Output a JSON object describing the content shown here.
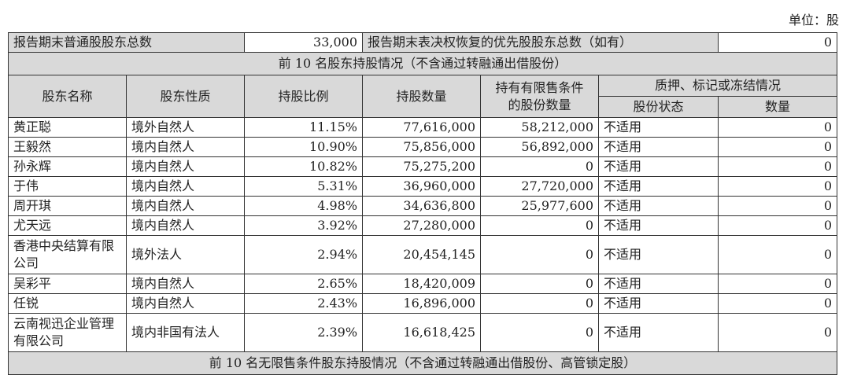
{
  "unit_label": "单位：股",
  "summary": {
    "common_label": "报告期末普通股股东总数",
    "common_value": "33,000",
    "preferred_label": "报告期末表决权恢复的优先股股东总数（如有）",
    "preferred_value": "0"
  },
  "section_title": "前 10 名股东持股情况（不含通过转融通出借股份）",
  "headers": {
    "name": "股东名称",
    "nature": "股东性质",
    "ratio": "持股比例",
    "quantity": "持股数量",
    "restricted": "持有有限售条件的股份数量",
    "pledge_group": "质押、标记或冻结情况",
    "pledge_status": "股份状态",
    "pledge_quantity": "数量"
  },
  "rows": [
    [
      "黄正聪",
      "境外自然人",
      "11.15%",
      "77,616,000",
      "58,212,000",
      "不适用",
      "0"
    ],
    [
      "王毅然",
      "境内自然人",
      "10.90%",
      "75,856,000",
      "56,892,000",
      "不适用",
      "0"
    ],
    [
      "孙永辉",
      "境内自然人",
      "10.82%",
      "75,275,200",
      "0",
      "不适用",
      "0"
    ],
    [
      "于伟",
      "境内自然人",
      "5.31%",
      "36,960,000",
      "27,720,000",
      "不适用",
      "0"
    ],
    [
      "周开琪",
      "境内自然人",
      "4.98%",
      "34,636,800",
      "25,977,600",
      "不适用",
      "0"
    ],
    [
      "尤天远",
      "境内自然人",
      "3.92%",
      "27,280,000",
      "0",
      "不适用",
      "0"
    ],
    [
      "香港中央结算有限公司",
      "境外法人",
      "2.94%",
      "20,454,145",
      "0",
      "不适用",
      "0"
    ],
    [
      "吴彩平",
      "境内自然人",
      "2.65%",
      "18,420,009",
      "0",
      "不适用",
      "0"
    ],
    [
      "任锐",
      "境内自然人",
      "2.43%",
      "16,896,000",
      "0",
      "不适用",
      "0"
    ],
    [
      "云南视迅企业管理有限公司",
      "境内非国有法人",
      "2.39%",
      "16,618,425",
      "0",
      "不适用",
      "0"
    ]
  ],
  "tall_rows": [
    6,
    9
  ],
  "footer_section_title": "前 10 名无限售条件股东持股情况（不含通过转融通出借股份、高管锁定股）"
}
